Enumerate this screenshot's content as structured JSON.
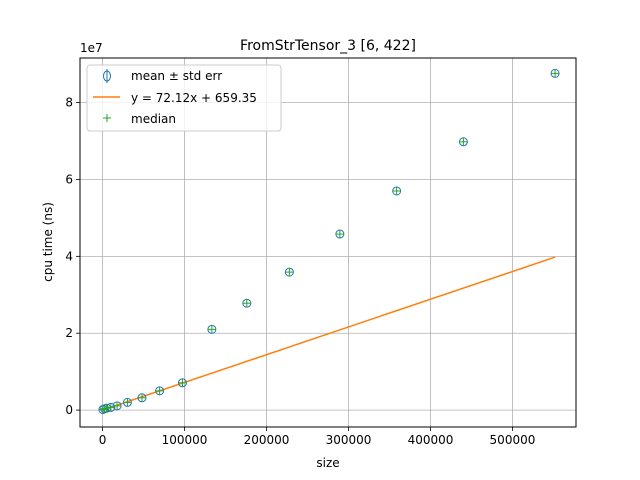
{
  "chart_data": {
    "type": "scatter",
    "title": "FromStrTensor_3 [6, 422]",
    "xlabel": "size",
    "ylabel": "cpu time (ns)",
    "y_offset_label": "1e7",
    "y_scale": 10000000,
    "xlim": [
      -27500,
      577500
    ],
    "ylim": [
      -4400000,
      91600000
    ],
    "xticks": [
      0,
      100000,
      200000,
      300000,
      400000,
      500000
    ],
    "xtick_labels": [
      "0",
      "100000",
      "200000",
      "300000",
      "400000",
      "500000"
    ],
    "yticks": [
      0,
      20000000,
      40000000,
      60000000,
      80000000
    ],
    "ytick_labels": [
      "0",
      "2",
      "4",
      "6",
      "8"
    ],
    "grid": true,
    "legend_position": "top-left",
    "series": [
      {
        "name": "mean ± std err",
        "marker": "open-circle-with-errorbar",
        "color": "#1f77b4",
        "x": [
          422,
          2532,
          5064,
          10128,
          17724,
          30384,
          48108,
          69630,
          97482,
          133352,
          175974,
          227880,
          289492,
          358700,
          440146,
          551976
        ],
        "y": [
          150000,
          350000,
          500000,
          700000,
          1100000,
          2000000,
          3200000,
          5000000,
          7100000,
          21000000,
          27800000,
          35900000,
          45800000,
          57000000,
          69800000,
          87600000
        ]
      },
      {
        "name": "y = 72.12x + 659.35",
        "marker": "line",
        "color": "#ff7f0e",
        "x": [
          422,
          551976
        ],
        "y": [
          31094,
          39808165
        ]
      },
      {
        "name": "median",
        "marker": "plus",
        "color": "#2ca02c",
        "x": [
          422,
          2532,
          5064,
          10128,
          17724,
          30384,
          48108,
          69630,
          97482,
          133352,
          175974,
          227880,
          289492,
          358700,
          440146,
          551976
        ],
        "y": [
          150000,
          350000,
          500000,
          700000,
          1100000,
          2000000,
          3200000,
          5000000,
          7100000,
          21000000,
          27800000,
          35900000,
          45800000,
          57000000,
          69800000,
          87600000
        ]
      }
    ]
  }
}
